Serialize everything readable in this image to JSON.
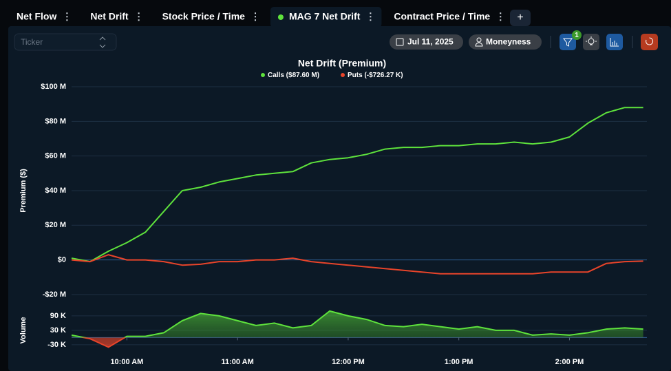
{
  "tabs": [
    "Net Flow",
    "Net Drift",
    "Stock Price / Time",
    "MAG 7 Net Drift",
    "Contract Price / Time"
  ],
  "active_tab": "MAG 7 Net Drift",
  "toolbar": {
    "ticker_placeholder": "Ticker",
    "date": "Jul 11, 2025",
    "moneyness": "Moneyness",
    "filter_count": 1
  },
  "chart_data": [
    {
      "type": "line",
      "title": "Net Drift (Premium)",
      "ylabel": "Premium ($)",
      "x": [
        "9:30 AM",
        "9:40 AM",
        "9:50 AM",
        "10:00 AM",
        "10:10 AM",
        "10:20 AM",
        "10:30 AM",
        "10:40 AM",
        "10:50 AM",
        "11:00 AM",
        "11:10 AM",
        "11:20 AM",
        "11:30 AM",
        "11:40 AM",
        "11:50 AM",
        "12:00 PM",
        "12:10 PM",
        "12:20 PM",
        "12:30 PM",
        "12:40 PM",
        "12:50 PM",
        "1:00 PM",
        "1:10 PM",
        "1:20 PM",
        "1:30 PM",
        "1:40 PM",
        "1:50 PM",
        "2:00 PM",
        "2:10 PM",
        "2:20 PM",
        "2:30 PM",
        "2:40 PM"
      ],
      "xlim": [
        "9:30 AM",
        "2:42 PM"
      ],
      "series": [
        {
          "name": "Calls ($87.60 M)",
          "color": "#5ee23c",
          "values": [
            1000000,
            -1000000,
            5000000,
            10000000,
            16000000,
            28000000,
            40000000,
            42000000,
            45000000,
            47000000,
            49000000,
            50000000,
            51000000,
            56000000,
            58000000,
            59000000,
            61000000,
            64000000,
            65000000,
            65000000,
            66000000,
            66000000,
            67000000,
            67000000,
            68000000,
            67000000,
            68000000,
            71000000,
            79000000,
            85000000,
            88000000,
            88000000
          ]
        },
        {
          "name": "Puts (-$726.27 K)",
          "color": "#e8442a",
          "values": [
            0,
            -1000000,
            3000000,
            0,
            0,
            -1000000,
            -3000000,
            -2500000,
            -1000000,
            -1000000,
            0,
            0,
            1000000,
            -1000000,
            -2000000,
            -3000000,
            -4000000,
            -5000000,
            -6000000,
            -7000000,
            -8000000,
            -8000000,
            -8000000,
            -8000000,
            -8000000,
            -8000000,
            -7000000,
            -7000000,
            -7000000,
            -2000000,
            -1000000,
            -700000
          ]
        }
      ],
      "ylim": [
        -24000000,
        102000000
      ],
      "yticks": [
        {
          "value": -20000000,
          "label": "-$20 M"
        },
        {
          "value": 0,
          "label": "$0"
        },
        {
          "value": 20000000,
          "label": "$20 M"
        },
        {
          "value": 40000000,
          "label": "$40 M"
        },
        {
          "value": 60000000,
          "label": "$60 M"
        },
        {
          "value": 80000000,
          "label": "$80 M"
        },
        {
          "value": 100000000,
          "label": "$100 M"
        }
      ],
      "grid": true
    },
    {
      "type": "area",
      "ylabel": "Volume",
      "x": [
        "9:30 AM",
        "9:40 AM",
        "9:50 AM",
        "10:00 AM",
        "10:10 AM",
        "10:20 AM",
        "10:30 AM",
        "10:40 AM",
        "10:50 AM",
        "11:00 AM",
        "11:10 AM",
        "11:20 AM",
        "11:30 AM",
        "11:40 AM",
        "11:50 AM",
        "12:00 PM",
        "12:10 PM",
        "12:20 PM",
        "12:30 PM",
        "12:40 PM",
        "12:50 PM",
        "1:00 PM",
        "1:10 PM",
        "1:20 PM",
        "1:30 PM",
        "1:40 PM",
        "1:50 PM",
        "2:00 PM",
        "2:10 PM",
        "2:20 PM",
        "2:30 PM",
        "2:40 PM"
      ],
      "xlim": [
        "9:30 AM",
        "2:42 PM"
      ],
      "xticks": [
        "10:00 AM",
        "11:00 AM",
        "12:00 PM",
        "1:00 PM",
        "2:00 PM"
      ],
      "values": [
        10000,
        -5000,
        -40000,
        5000,
        5000,
        20000,
        70000,
        100000,
        90000,
        70000,
        50000,
        60000,
        40000,
        50000,
        110000,
        90000,
        75000,
        50000,
        45000,
        55000,
        45000,
        35000,
        45000,
        30000,
        30000,
        10000,
        15000,
        10000,
        20000,
        35000,
        40000,
        35000
      ],
      "color": "#5ee23c",
      "negative_color": "#e8442a",
      "ylim": [
        -56000,
        121000
      ],
      "yticks": [
        {
          "value": -30000,
          "label": "-30 K"
        },
        {
          "value": 30000,
          "label": "30 K"
        },
        {
          "value": 90000,
          "label": "90 K"
        }
      ],
      "grid": true
    }
  ]
}
